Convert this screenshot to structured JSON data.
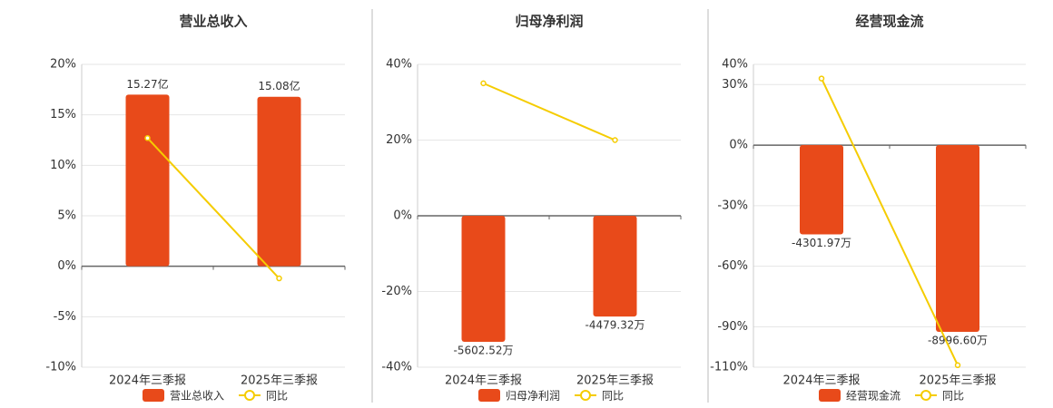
{
  "chart_data": [
    {
      "type": "bar",
      "title": "营业总收入",
      "categories": [
        "2024年三季报",
        "2025年三季报"
      ],
      "series": [
        {
          "name": "营业总收入",
          "type": "bar",
          "color": "#e84a1a",
          "axis": "y2",
          "values": [
            15.27,
            15.08
          ],
          "value_labels": [
            "15.27亿",
            "15.08亿"
          ]
        },
        {
          "name": "同比",
          "type": "line",
          "color": "#f5cc00",
          "values": [
            12.7,
            -1.2
          ]
        }
      ],
      "ylim": [
        -10,
        20
      ],
      "yticks": [
        {
          "value": -10,
          "label": "-10%"
        },
        {
          "value": -5,
          "label": "-5%"
        },
        {
          "value": 0,
          "label": "0%"
        },
        {
          "value": 5,
          "label": "5%"
        },
        {
          "value": 10,
          "label": "10%"
        },
        {
          "value": 15,
          "label": "15%"
        },
        {
          "value": 20,
          "label": "20%"
        }
      ],
      "y2lim": [
        -8.98,
        17.96
      ],
      "grid": true
    },
    {
      "type": "bar",
      "title": "归母净利润",
      "categories": [
        "2024年三季报",
        "2025年三季报"
      ],
      "series": [
        {
          "name": "归母净利润",
          "type": "bar",
          "color": "#e84a1a",
          "axis": "y2",
          "values": [
            -5602.52,
            -4479.32
          ],
          "value_labels": [
            "-5602.52万",
            "-4479.32万"
          ]
        },
        {
          "name": "同比",
          "type": "line",
          "color": "#f5cc00",
          "values": [
            35,
            20
          ]
        }
      ],
      "ylim": [
        -40,
        40
      ],
      "yticks": [
        {
          "value": -40,
          "label": "-40%"
        },
        {
          "value": -20,
          "label": "-20%"
        },
        {
          "value": 0,
          "label": "0%"
        },
        {
          "value": 20,
          "label": "20%"
        },
        {
          "value": 40,
          "label": "40%"
        }
      ],
      "y2lim": [
        -6730,
        6730
      ],
      "grid": true
    },
    {
      "type": "bar",
      "title": "经营现金流",
      "categories": [
        "2024年三季报",
        "2025年三季报"
      ],
      "series": [
        {
          "name": "经营现金流",
          "type": "bar",
          "color": "#e84a1a",
          "axis": "y2",
          "values": [
            -4301.97,
            -8996.6
          ],
          "value_labels": [
            "-4301.97万",
            "-8996.60万"
          ]
        },
        {
          "name": "同比",
          "type": "line",
          "color": "#f5cc00",
          "values": [
            33,
            -109
          ]
        }
      ],
      "ylim": [
        -110,
        40
      ],
      "yticks": [
        {
          "value": -110,
          "label": "-110%"
        },
        {
          "value": -90,
          "label": "-90%"
        },
        {
          "value": -60,
          "label": "-60%"
        },
        {
          "value": -30,
          "label": "-30%"
        },
        {
          "value": 0,
          "label": "0%"
        },
        {
          "value": 30,
          "label": "30%"
        },
        {
          "value": 40,
          "label": "40%"
        }
      ],
      "y2lim": [
        -10700,
        3890
      ],
      "grid": true
    }
  ]
}
